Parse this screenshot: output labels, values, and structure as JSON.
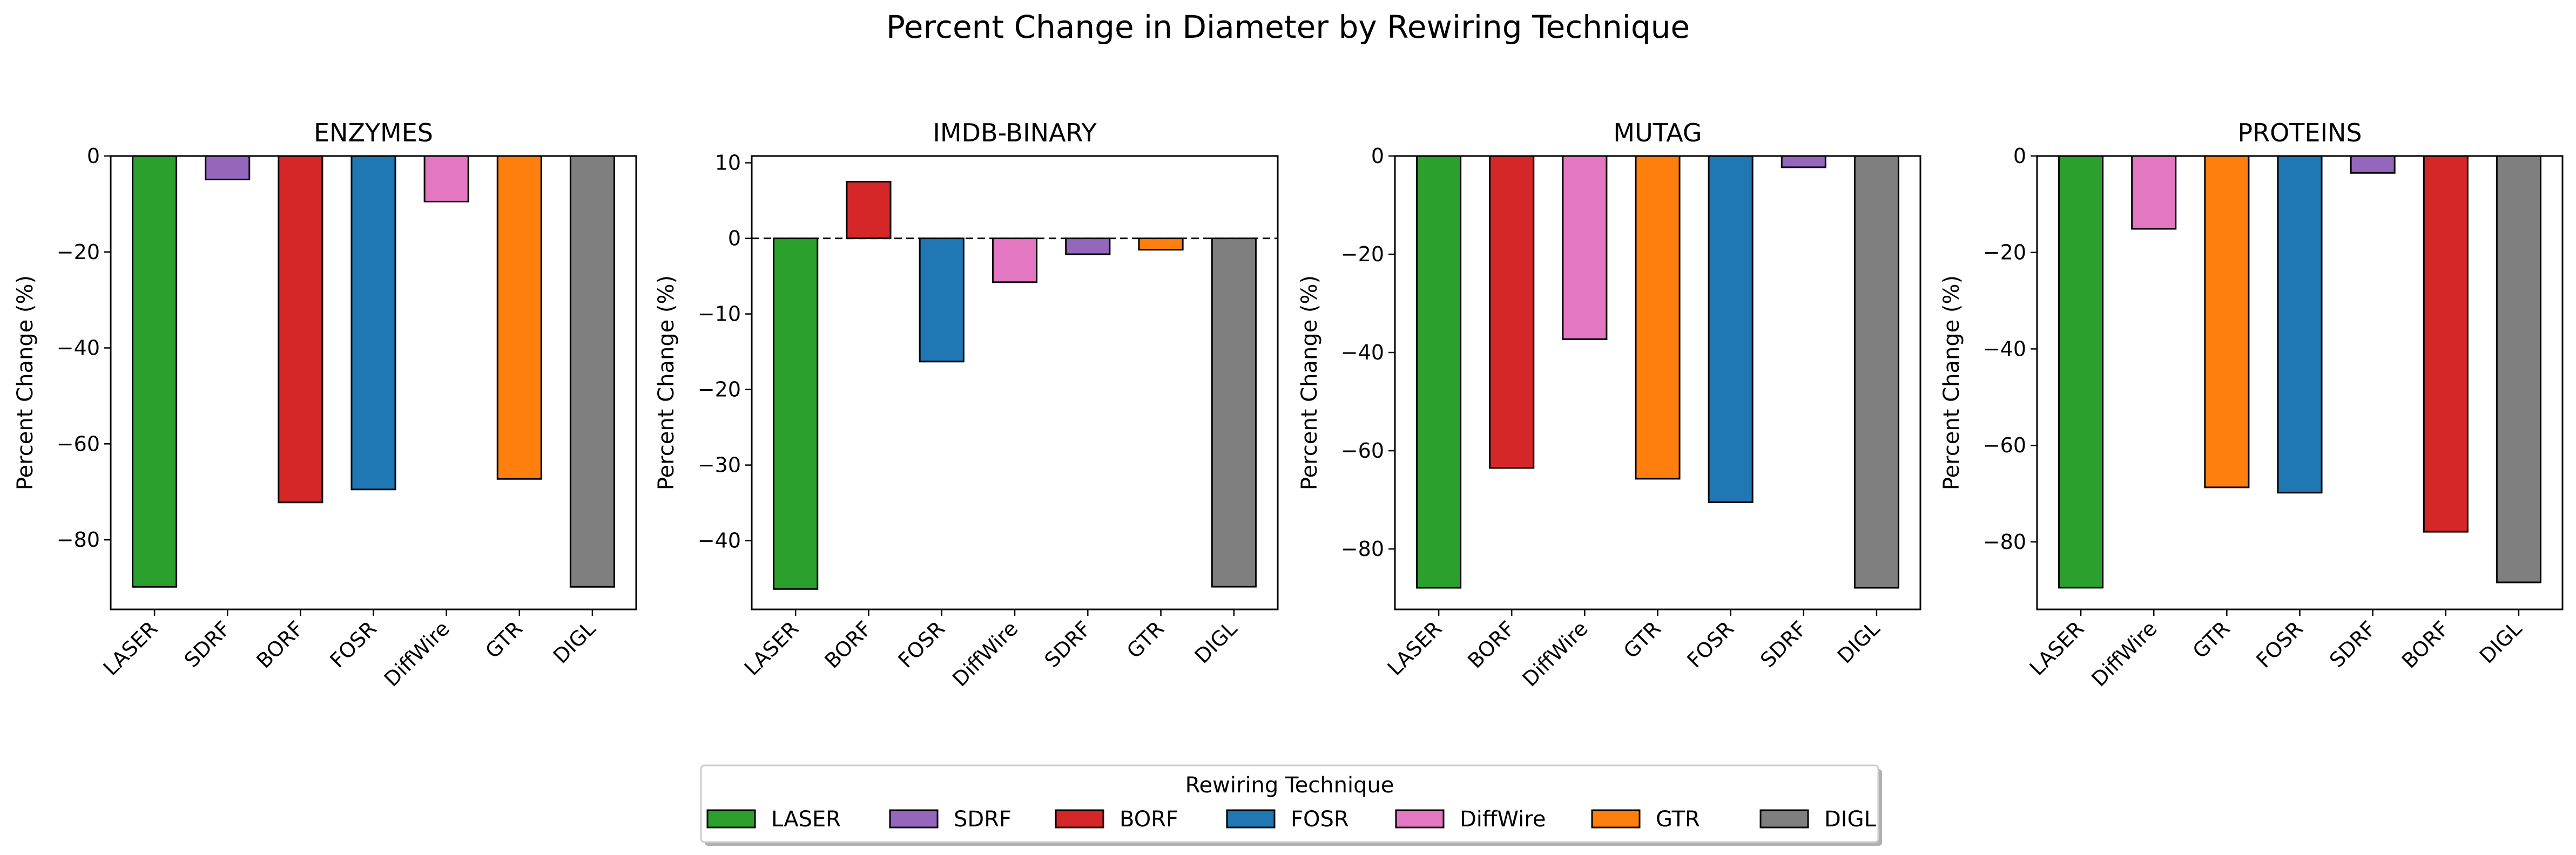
{
  "figure_title": "Percent Change in Diameter by Rewiring Technique",
  "colors": {
    "LASER": "#2ca02c",
    "SDRF": "#9467bd",
    "BORF": "#d62728",
    "FOSR": "#1f77b4",
    "DiffWire": "#e377c2",
    "GTR": "#ff7f0e",
    "DIGL": "#7f7f7f"
  },
  "chart_data": [
    {
      "type": "bar",
      "title": "ENZYMES",
      "ylabel": "Percent Change (%)",
      "categories": [
        "LASER",
        "SDRF",
        "BORF",
        "FOSR",
        "DiffWire",
        "GTR",
        "DIGL"
      ],
      "values": [
        -89.8,
        -4.9,
        -72.2,
        -69.5,
        -9.5,
        -67.3,
        -89.8
      ],
      "ylim": [
        -94.5,
        0
      ],
      "yticks": [
        0,
        -20,
        -40,
        -60,
        -80
      ],
      "zero_line": false
    },
    {
      "type": "bar",
      "title": "IMDB-BINARY",
      "ylabel": "Percent Change (%)",
      "categories": [
        "LASER",
        "BORF",
        "FOSR",
        "DiffWire",
        "SDRF",
        "GTR",
        "DIGL"
      ],
      "values": [
        -46.4,
        7.5,
        -16.3,
        -5.8,
        -2.1,
        -1.5,
        -46.1
      ],
      "ylim": [
        -49.1,
        10.9
      ],
      "yticks": [
        10,
        0,
        -10,
        -20,
        -30,
        -40
      ],
      "zero_line": true
    },
    {
      "type": "bar",
      "title": "MUTAG",
      "ylabel": "Percent Change (%)",
      "categories": [
        "LASER",
        "BORF",
        "DiffWire",
        "GTR",
        "FOSR",
        "SDRF",
        "DIGL"
      ],
      "values": [
        -87.9,
        -63.5,
        -37.3,
        -65.7,
        -70.5,
        -2.3,
        -87.9
      ],
      "ylim": [
        -92.3,
        0
      ],
      "yticks": [
        0,
        -20,
        -40,
        -60,
        -80
      ],
      "zero_line": false
    },
    {
      "type": "bar",
      "title": "PROTEINS",
      "ylabel": "Percent Change (%)",
      "categories": [
        "LASER",
        "DiffWire",
        "GTR",
        "FOSR",
        "SDRF",
        "BORF",
        "DIGL"
      ],
      "values": [
        -89.5,
        -15.1,
        -68.7,
        -69.8,
        -3.5,
        -77.9,
        -88.4
      ],
      "ylim": [
        -94.0,
        0
      ],
      "yticks": [
        0,
        -20,
        -40,
        -60,
        -80
      ],
      "zero_line": false
    }
  ],
  "legend": {
    "title": "Rewiring Technique",
    "items": [
      "LASER",
      "SDRF",
      "BORF",
      "FOSR",
      "DiffWire",
      "GTR",
      "DIGL"
    ]
  }
}
